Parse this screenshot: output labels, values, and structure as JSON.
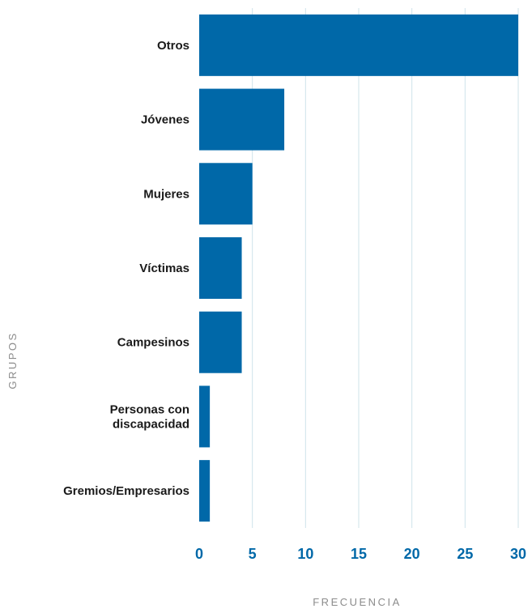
{
  "chart_data": {
    "type": "bar",
    "orientation": "horizontal",
    "categories": [
      "Otros",
      "Jóvenes",
      "Mujeres",
      "Víctimas",
      "Campesinos",
      "Personas con discapacidad",
      "Gremios/Empresarios"
    ],
    "category_label_lines": [
      [
        "Otros"
      ],
      [
        "Jóvenes"
      ],
      [
        "Mujeres"
      ],
      [
        "Víctimas"
      ],
      [
        "Campesinos"
      ],
      [
        "Personas con",
        "discapacidad"
      ],
      [
        "Gremios/Empresarios"
      ]
    ],
    "values": [
      30,
      8,
      5,
      4,
      4,
      1,
      1
    ],
    "xlabel": "FRECUENCIA",
    "ylabel": "GRUPOS",
    "xlim": [
      0,
      30
    ],
    "xticks": [
      0,
      5,
      10,
      15,
      20,
      25,
      30
    ],
    "xtick_labels": [
      "0",
      "5",
      "10",
      "15",
      "20",
      "25",
      "30"
    ],
    "grid": "vertical",
    "legend": "none",
    "colors": {
      "bar": "#0068a8",
      "tick_label": "#0068a8",
      "grid": "#cfe3ea",
      "axis_title": "#8c8c8c",
      "category_label": "#1a1a1a"
    }
  }
}
